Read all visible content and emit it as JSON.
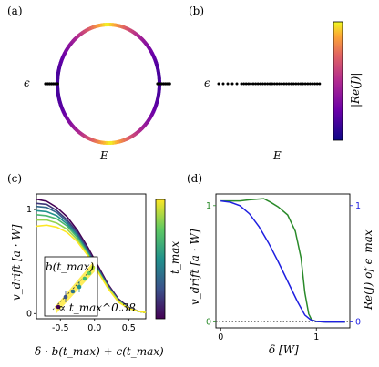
{
  "panels": {
    "a": {
      "label": "(a)",
      "ylabel": "ϵ",
      "xlabel": "E"
    },
    "b": {
      "label": "(b)",
      "ylabel": "ϵ",
      "xlabel": "E",
      "colorbar_label": "|Re(J)|"
    },
    "c": {
      "label": "(c)",
      "ylabel": "v_drift [a · W]",
      "xlabel": "δ · b(t_max) + c(t_max)",
      "colorbar_label": "t_max",
      "inset": {
        "ylabel": "b(t_max)",
        "annotation": "∝ t_max^0.38"
      }
    },
    "d": {
      "label": "(d)",
      "ylabel_left": "v_drift [a · W]",
      "ylabel_right": "Re(J) of ϵ_max",
      "xlabel": "δ [W]"
    }
  },
  "colors": {
    "green": "#2a8a2a",
    "blue": "#1f1fe0",
    "plasma_top": "#f0f921",
    "plasma_bottom": "#0d0887"
  },
  "chart_data": [
    {
      "type": "line",
      "panel": "c",
      "title": "",
      "xlabel": "δ · b(t_max) + c(t_max)",
      "ylabel": "v_drift [a · W]",
      "xlim": [
        -0.85,
        0.75
      ],
      "ylim": [
        -0.05,
        1.15
      ],
      "xticks": [
        "-0.5",
        "0.0",
        "0.5"
      ],
      "yticks": [
        "0",
        "1"
      ],
      "x": [
        -0.85,
        -0.7,
        -0.55,
        -0.4,
        -0.25,
        -0.1,
        0.05,
        0.2,
        0.35,
        0.5,
        0.65,
        0.75
      ],
      "series": [
        {
          "values": [
            1.1,
            1.08,
            1.02,
            0.93,
            0.8,
            0.64,
            0.46,
            0.28,
            0.14,
            0.06,
            0.02,
            0.01
          ]
        },
        {
          "values": [
            1.06,
            1.05,
            0.99,
            0.9,
            0.78,
            0.62,
            0.44,
            0.27,
            0.13,
            0.06,
            0.02,
            0.01
          ]
        },
        {
          "values": [
            1.03,
            1.02,
            0.97,
            0.88,
            0.76,
            0.6,
            0.43,
            0.26,
            0.13,
            0.05,
            0.02,
            0.01
          ]
        },
        {
          "values": [
            0.99,
            0.98,
            0.94,
            0.86,
            0.74,
            0.59,
            0.42,
            0.25,
            0.12,
            0.05,
            0.02,
            0.01
          ]
        },
        {
          "values": [
            0.95,
            0.94,
            0.91,
            0.84,
            0.73,
            0.58,
            0.41,
            0.25,
            0.12,
            0.05,
            0.02,
            0.01
          ]
        },
        {
          "values": [
            0.9,
            0.9,
            0.87,
            0.81,
            0.71,
            0.57,
            0.41,
            0.25,
            0.12,
            0.05,
            0.02,
            0.01
          ]
        },
        {
          "values": [
            0.84,
            0.85,
            0.83,
            0.78,
            0.69,
            0.56,
            0.4,
            0.24,
            0.11,
            0.05,
            0.02,
            0.01
          ]
        }
      ]
    },
    {
      "type": "line",
      "panel": "d",
      "title": "",
      "xlabel": "δ [W]",
      "ylabel": "v_drift [a · W]",
      "y2label": "Re(J) of ϵ_max",
      "xlim": [
        -0.05,
        1.35
      ],
      "ylim": [
        -0.05,
        1.1
      ],
      "xticks": [
        "0",
        "1"
      ],
      "yticks": [
        "0",
        "1"
      ],
      "y2ticks": [
        "0",
        "1"
      ],
      "series": [
        {
          "color": "#2a8a2a",
          "x": [
            0,
            0.1,
            0.2,
            0.3,
            0.45,
            0.52,
            0.6,
            0.7,
            0.78,
            0.84,
            0.88,
            0.92,
            0.95,
            1.0,
            1.1,
            1.3
          ],
          "values": [
            1.04,
            1.04,
            1.04,
            1.05,
            1.06,
            1.03,
            0.99,
            0.92,
            0.78,
            0.55,
            0.25,
            0.07,
            0.02,
            0.005,
            0.0,
            0.0
          ]
        },
        {
          "color": "#1f1fe0",
          "x": [
            0,
            0.1,
            0.2,
            0.3,
            0.4,
            0.5,
            0.6,
            0.7,
            0.8,
            0.88,
            0.94,
            1.0,
            1.1,
            1.3
          ],
          "values": [
            1.04,
            1.03,
            1.0,
            0.93,
            0.82,
            0.68,
            0.52,
            0.35,
            0.18,
            0.06,
            0.02,
            0.005,
            0.0,
            0.0
          ]
        }
      ],
      "reference_line": {
        "y": 0
      }
    }
  ]
}
